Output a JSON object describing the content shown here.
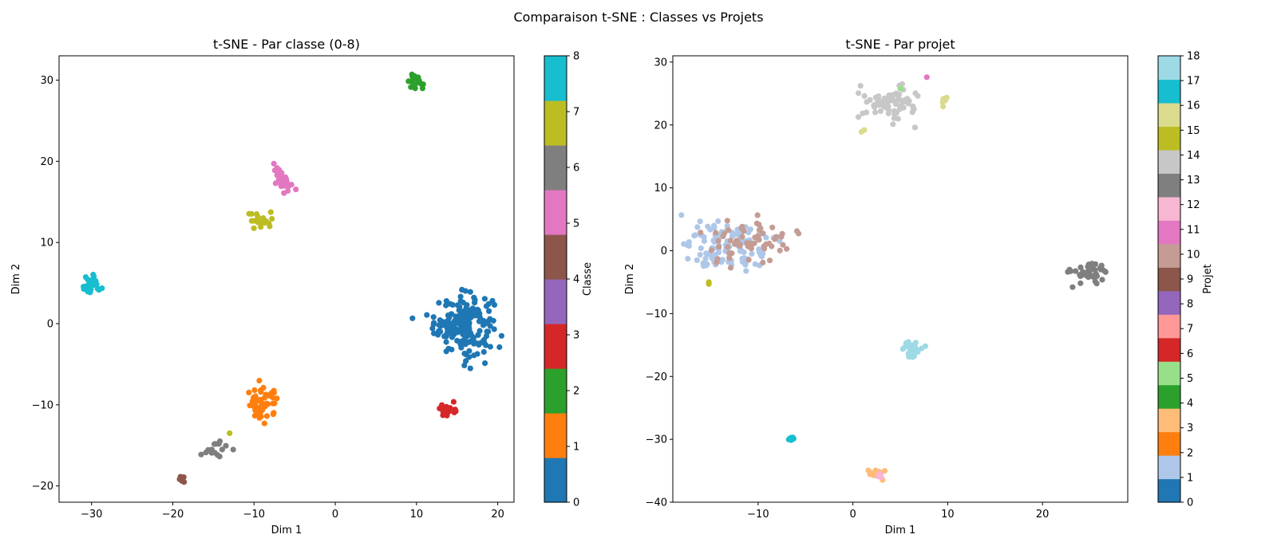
{
  "figure": {
    "suptitle": "Comparaison t-SNE : Classes vs Projets"
  },
  "palette": [
    "#1f77b4",
    "#aec7e8",
    "#ff7f0e",
    "#ffbb78",
    "#2ca02c",
    "#98df8a",
    "#d62728",
    "#ff9896",
    "#9467bd",
    "#c5b0d5",
    "#8c564b",
    "#c49c94",
    "#e377c2",
    "#f7b6d2",
    "#7f7f7f",
    "#c7c7c7",
    "#bcbd22",
    "#dbdb8d",
    "#17becf",
    "#9edae5"
  ],
  "chart_data": [
    {
      "type": "scatter",
      "title": "t-SNE - Par classe (0-8)",
      "xlabel": "Dim 1",
      "ylabel": "Dim 2",
      "xlim": [
        -34,
        22
      ],
      "ylim": [
        -22,
        33
      ],
      "xticks": [
        -30,
        -20,
        -10,
        0,
        10,
        20
      ],
      "yticks": [
        -20,
        -10,
        0,
        10,
        20,
        30
      ],
      "colorbar": {
        "label": "Classe",
        "min": 0,
        "max": 8,
        "ticks": [
          0,
          1,
          2,
          3,
          4,
          5,
          6,
          7,
          8
        ],
        "colors": [
          "#1f77b4",
          "#ff7f0e",
          "#2ca02c",
          "#d62728",
          "#9467bd",
          "#8c564b",
          "#e377c2",
          "#7f7f7f",
          "#bcbd22",
          "#17becf"
        ]
      },
      "clusters": [
        {
          "label": 0,
          "color": "#1f77b4",
          "cx": 15.8,
          "cy": 0.0,
          "sx": 1.8,
          "sy": 1.8,
          "n": 190
        },
        {
          "label": 1,
          "color": "#ff7f0e",
          "cx": -8.8,
          "cy": -10.0,
          "sx": 1.0,
          "sy": 1.0,
          "n": 55
        },
        {
          "label": 2,
          "color": "#2ca02c",
          "cx": 9.8,
          "cy": 29.8,
          "sx": 0.5,
          "sy": 0.5,
          "n": 20
        },
        {
          "label": 3,
          "color": "#d62728",
          "cx": 13.8,
          "cy": -10.6,
          "sx": 0.45,
          "sy": 0.45,
          "n": 30
        },
        {
          "label": 5,
          "color": "#8c564b",
          "cx": -18.7,
          "cy": -19.2,
          "sx": 0.3,
          "sy": 0.2,
          "n": 8
        },
        {
          "label": 6,
          "color": "#e377c2",
          "cx": -6.5,
          "cy": 17.8,
          "sx": 0.55,
          "sy": 0.7,
          "n": 35
        },
        {
          "label": 7,
          "color": "#7f7f7f",
          "cx": -14.5,
          "cy": -15.5,
          "sx": 0.7,
          "sy": 0.5,
          "n": 15
        },
        {
          "label": 7.5,
          "color": "#bcbd22",
          "cx": -9.3,
          "cy": 12.8,
          "sx": 0.8,
          "sy": 0.6,
          "n": 22
        },
        {
          "label": 8,
          "color": "#17becf",
          "cx": -30.0,
          "cy": 4.5,
          "sx": 0.6,
          "sy": 0.6,
          "n": 30
        }
      ],
      "points": [
        {
          "x": -13.0,
          "y": -13.5,
          "color": "#bcbd22"
        }
      ]
    },
    {
      "type": "scatter",
      "title": "t-SNE - Par projet",
      "xlabel": "Dim 1",
      "ylabel": "Dim 2",
      "xlim": [
        -19,
        29
      ],
      "ylim": [
        -40,
        31
      ],
      "xticks": [
        -10,
        0,
        10,
        20
      ],
      "yticks": [
        -40,
        -30,
        -20,
        -10,
        0,
        10,
        20,
        30
      ],
      "colorbar": {
        "label": "Projet",
        "min": 0,
        "max": 18,
        "ticks": [
          0,
          1,
          2,
          3,
          4,
          5,
          6,
          7,
          8,
          9,
          10,
          11,
          12,
          13,
          14,
          15,
          16,
          17,
          18
        ],
        "colors": [
          "#1f77b4",
          "#aec7e8",
          "#ff7f0e",
          "#ffbb78",
          "#2ca02c",
          "#98df8a",
          "#d62728",
          "#ff9896",
          "#9467bd",
          "#8c564b",
          "#c49c94",
          "#e377c2",
          "#f7b6d2",
          "#7f7f7f",
          "#c7c7c7",
          "#bcbd22",
          "#dbdb8d",
          "#17becf",
          "#9edae5"
        ]
      },
      "clusters": [
        {
          "label": 1,
          "color": "#aec7e8",
          "cx": -13.0,
          "cy": 0.5,
          "sx": 2.3,
          "sy": 1.8,
          "n": 120
        },
        {
          "label": 10,
          "color": "#c49c94",
          "cx": -11.0,
          "cy": 1.5,
          "sx": 2.2,
          "sy": 1.8,
          "n": 60
        },
        {
          "label": 14,
          "color": "#c7c7c7",
          "cx": 4.0,
          "cy": 23.5,
          "sx": 1.6,
          "sy": 1.5,
          "n": 80
        },
        {
          "label": 13,
          "color": "#7f7f7f",
          "cx": 25.0,
          "cy": -3.5,
          "sx": 1.0,
          "sy": 0.8,
          "n": 40
        },
        {
          "label": 18,
          "color": "#9edae5",
          "cx": 6.0,
          "cy": -15.6,
          "sx": 0.5,
          "sy": 0.5,
          "n": 30
        },
        {
          "label": 17,
          "color": "#17becf",
          "cx": -6.5,
          "cy": -30.0,
          "sx": 0.1,
          "sy": 0.15,
          "n": 12
        },
        {
          "label": 3,
          "color": "#ffbb78",
          "cx": 2.6,
          "cy": -35.5,
          "sx": 0.5,
          "sy": 0.4,
          "n": 18
        },
        {
          "label": 12,
          "color": "#f7b6d2",
          "cx": 2.8,
          "cy": -35.7,
          "sx": 0.3,
          "sy": 0.3,
          "n": 5
        },
        {
          "label": 16,
          "color": "#dbdb8d",
          "cx": 9.7,
          "cy": 24.0,
          "sx": 0.2,
          "sy": 0.4,
          "n": 6
        }
      ],
      "points": [
        {
          "x": 7.8,
          "y": 27.6,
          "color": "#e377c2"
        },
        {
          "x": 5.0,
          "y": 25.8,
          "color": "#98df8a"
        },
        {
          "x": 1.2,
          "y": 19.2,
          "color": "#dbdb8d"
        },
        {
          "x": 0.9,
          "y": 18.9,
          "color": "#dbdb8d"
        },
        {
          "x": -15.2,
          "y": -5.3,
          "color": "#bcbd22"
        },
        {
          "x": -15.2,
          "y": -5.0,
          "color": "#bcbd22"
        }
      ]
    }
  ]
}
